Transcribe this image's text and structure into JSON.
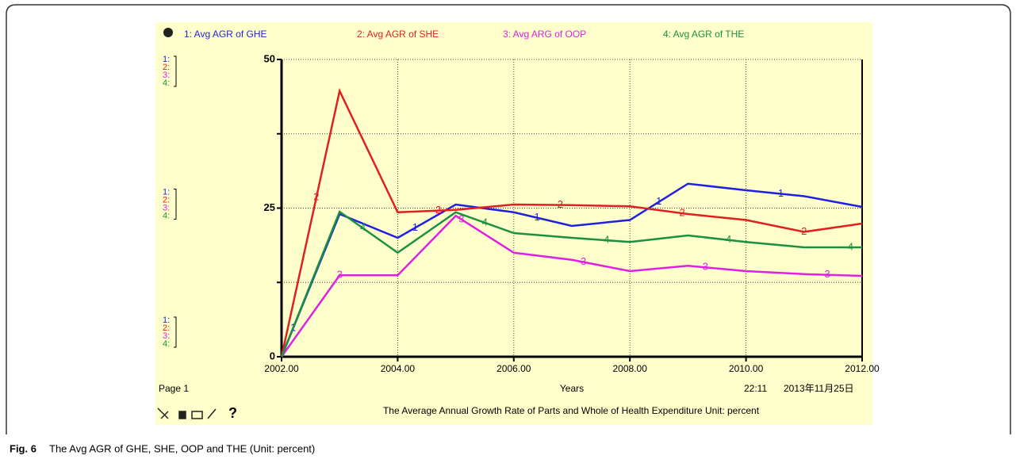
{
  "chart_data": {
    "type": "line",
    "subtitle": "The Average Annual Growth Rate of Parts and Whole of Health Expenditure   Unit: percent",
    "x_label": "Years",
    "page_label": "Page 1",
    "time": "22:11",
    "date": "2013年11月25日",
    "help": "?",
    "caption_label": "Fig. 6",
    "caption": "The Avg AGR of GHE, SHE, OOP and THE (Unit: percent)",
    "x": [
      2002,
      2003,
      2004,
      2005,
      2006,
      2007,
      2008,
      2009,
      2010,
      2011,
      2012
    ],
    "xlim": [
      2002,
      2012
    ],
    "xticks": [
      {
        "value": 2002,
        "label": "2002.00"
      },
      {
        "value": 2004,
        "label": "2004.00"
      },
      {
        "value": 2006,
        "label": "2006.00"
      },
      {
        "value": 2008,
        "label": "2008.00"
      },
      {
        "value": 2010,
        "label": "2010.00"
      },
      {
        "value": 2012,
        "label": "2012.00"
      }
    ],
    "ylim": [
      0,
      50
    ],
    "yticks": [
      0,
      25,
      50
    ],
    "yminor": [
      12.5,
      37.5
    ],
    "grid": true,
    "series": [
      {
        "name": "1: Avg AGR of GHE",
        "marker": "1",
        "scale_label": "1:",
        "color": "#1f1fe0",
        "values": [
          0,
          24,
          20,
          25.6,
          24.3,
          22,
          23,
          29.1,
          28,
          27,
          25.2
        ]
      },
      {
        "name": "2: Avg AGR of SHE",
        "marker": "2",
        "scale_label": "2:",
        "color": "#e02020",
        "values": [
          0,
          44.7,
          24.3,
          24.7,
          25.6,
          25.5,
          25.3,
          24,
          23,
          21,
          22.4
        ]
      },
      {
        "name": "3: Avg ARG of OOP",
        "marker": "3",
        "scale_label": "3:",
        "color": "#e020e0",
        "values": [
          0,
          13.7,
          13.7,
          23.7,
          17.5,
          16.3,
          14.4,
          15.3,
          14.4,
          13.9,
          13.6
        ]
      },
      {
        "name": "4: Avg AGR of THE",
        "marker": "4",
        "scale_label": "4:",
        "color": "#1a9040",
        "values": [
          0,
          24.4,
          17.5,
          24.3,
          20.8,
          20,
          19.3,
          20.4,
          19.3,
          18.4,
          18.4
        ]
      }
    ]
  }
}
